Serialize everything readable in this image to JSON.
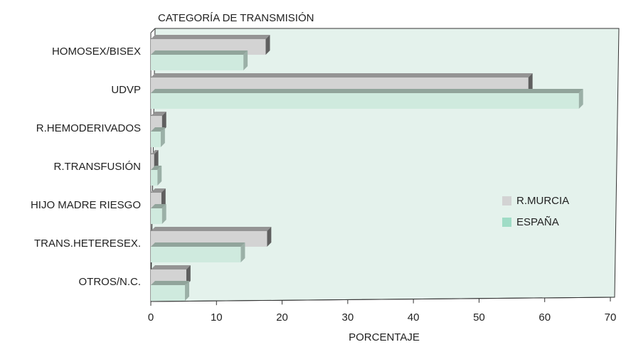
{
  "chart_data": {
    "type": "bar3d_horizontal",
    "title": "CATEGORÍA DE TRANSMISIÓN",
    "xlabel": "PORCENTAJE",
    "categories": [
      "HOMOSEX/BISEX",
      "UDVP",
      "R.HEMODERIVADOS",
      "R.TRANSFUSIÓN",
      "HIJO MADRE RIESGO",
      "TRANS.HETERESEX.",
      "OTROS/N.C."
    ],
    "series": [
      {
        "name": "R.MURCIA",
        "color": "#d3d3d3",
        "values": [
          17.5,
          57.5,
          1.7,
          0.5,
          1.6,
          17.7,
          5.4
        ]
      },
      {
        "name": "ESPAÑA",
        "color": "#cfeade",
        "values": [
          14.1,
          65.2,
          1.5,
          1.0,
          1.7,
          13.7,
          5.2
        ]
      }
    ],
    "xlim": [
      0,
      70
    ],
    "xticks": [
      0,
      10,
      20,
      30,
      40,
      50,
      60,
      70
    ],
    "legend": "right"
  }
}
